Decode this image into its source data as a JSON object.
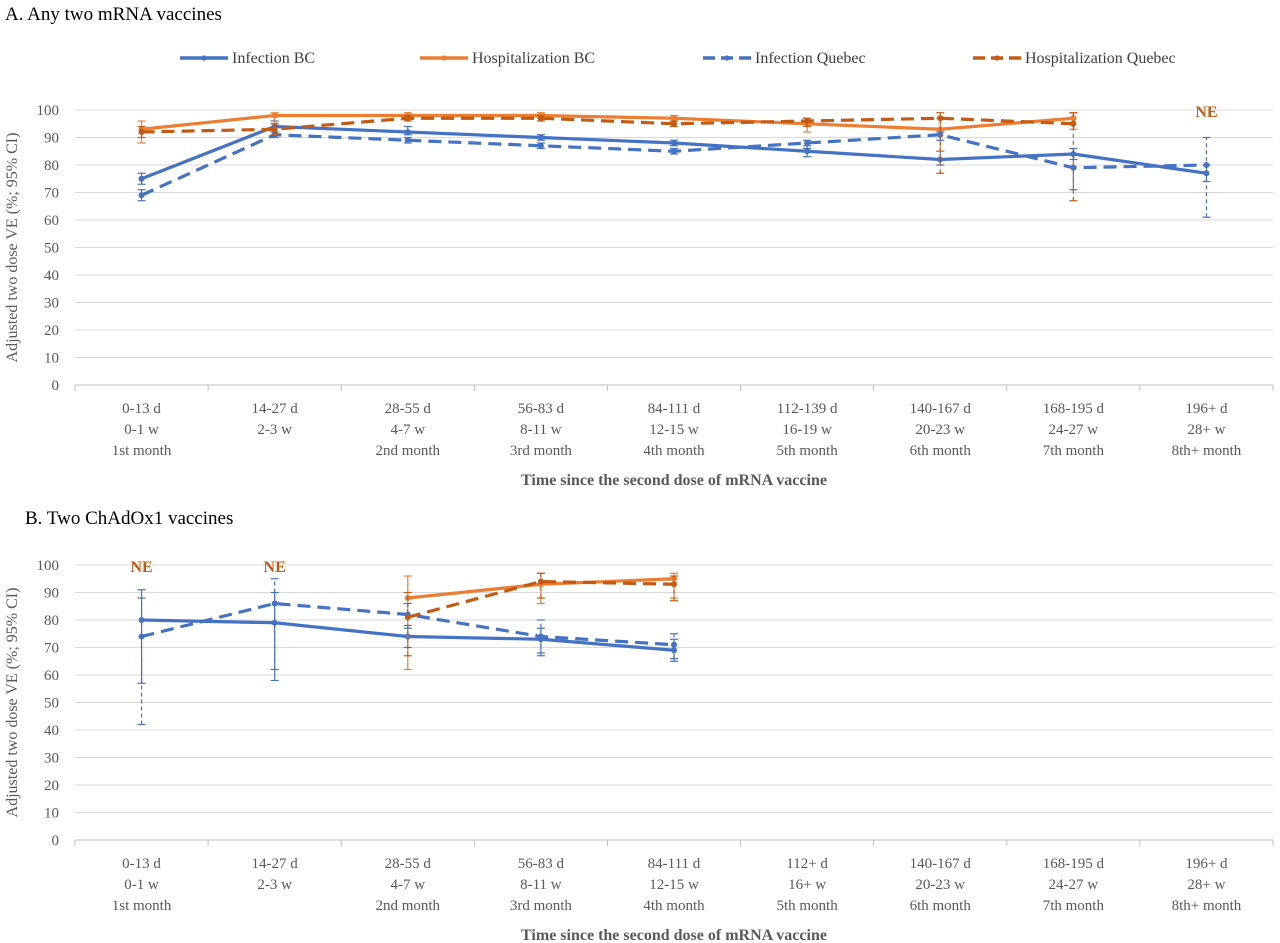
{
  "legend": [
    {
      "name": "Infection BC",
      "color": "#4472C4",
      "dash": false
    },
    {
      "name": "Hospitalization BC",
      "color": "#ED7D31",
      "dash": false
    },
    {
      "name": "Infection Quebec",
      "color": "#4472C4",
      "dash": true
    },
    {
      "name": "Hospitalization Quebec",
      "color": "#C55A11",
      "dash": true
    }
  ],
  "chart_data": [
    {
      "type": "line",
      "title": "A. Any two mRNA vaccines",
      "xlabel": "Time since the second dose of mRNA vaccine",
      "ylabel": "Adjusted two dose VE (%; 95% CI)",
      "ylim": [
        0,
        100
      ],
      "yticks": [
        0,
        10,
        20,
        30,
        40,
        50,
        60,
        70,
        80,
        90,
        100
      ],
      "grid": true,
      "legend_position": "top",
      "categories": [
        [
          "0-13 d",
          "0-1 w",
          "1st month"
        ],
        [
          "14-27 d",
          "2-3 w",
          ""
        ],
        [
          "28-55 d",
          "4-7 w",
          "2nd month"
        ],
        [
          "56-83 d",
          "8-11 w",
          "3rd month"
        ],
        [
          "84-111 d",
          "12-15 w",
          "4th month"
        ],
        [
          "112-139 d",
          "16-19 w",
          "5th month"
        ],
        [
          "140-167 d",
          "20-23 w",
          "6th month"
        ],
        [
          "168-195 d",
          "24-27 w",
          "7th month"
        ],
        [
          "196+ d",
          "28+ w",
          "8th+ month"
        ]
      ],
      "series": [
        {
          "name": "Infection BC",
          "color": "#4472C4",
          "dash": false,
          "values": [
            75,
            94,
            92,
            90,
            88,
            85,
            82,
            84,
            77
          ],
          "ci": [
            [
              73,
              77
            ],
            [
              92,
              96
            ],
            [
              91,
              94
            ],
            [
              89,
              91
            ],
            [
              87,
              89
            ],
            [
              83,
              87
            ],
            [
              80,
              85
            ],
            [
              82,
              86
            ],
            [
              74,
              80
            ]
          ]
        },
        {
          "name": "Hospitalization BC",
          "color": "#ED7D31",
          "dash": false,
          "values": [
            93,
            98,
            98,
            98,
            97,
            95,
            93,
            97,
            null
          ],
          "ci": [
            [
              88,
              96
            ],
            [
              95,
              99
            ],
            [
              97,
              99
            ],
            [
              97,
              99
            ],
            [
              96,
              98
            ],
            [
              92,
              97
            ],
            [
              85,
              97
            ],
            [
              93,
              99
            ],
            null
          ]
        },
        {
          "name": "Infection Quebec",
          "color": "#4472C4",
          "dash": true,
          "values": [
            69,
            91,
            89,
            87,
            85,
            88,
            91,
            79,
            80
          ],
          "ci": [
            [
              67,
              71
            ],
            [
              90,
              92
            ],
            [
              88,
              90
            ],
            [
              86,
              88
            ],
            [
              84,
              86
            ],
            [
              86,
              89
            ],
            [
              89,
              92
            ],
            [
              71,
              86
            ],
            [
              61,
              90
            ]
          ]
        },
        {
          "name": "Hospitalization Quebec",
          "color": "#C55A11",
          "dash": true,
          "values": [
            92,
            93,
            97,
            97,
            95,
            96,
            97,
            95,
            null
          ],
          "ci": [
            [
              90,
              94
            ],
            [
              91,
              95
            ],
            [
              96,
              98
            ],
            [
              96,
              98
            ],
            [
              94,
              96
            ],
            [
              94,
              97
            ],
            [
              77,
              99
            ],
            [
              67,
              99
            ],
            null
          ]
        }
      ],
      "annotations": [
        {
          "text": "NE",
          "category_index": 8,
          "y": 100,
          "color": "#C55A11"
        }
      ]
    },
    {
      "type": "line",
      "title": "B. Two ChAdOx1 vaccines",
      "xlabel": "Time since the second dose of mRNA vaccine",
      "ylabel": "Adjusted two dose VE (%; 95% CI)",
      "ylim": [
        0,
        100
      ],
      "yticks": [
        0,
        10,
        20,
        30,
        40,
        50,
        60,
        70,
        80,
        90,
        100
      ],
      "grid": true,
      "categories": [
        [
          "0-13 d",
          "0-1 w",
          "1st month"
        ],
        [
          "14-27 d",
          "2-3 w",
          ""
        ],
        [
          "28-55 d",
          "4-7 w",
          "2nd month"
        ],
        [
          "56-83 d",
          "8-11 w",
          "3rd month"
        ],
        [
          "84-111 d",
          "12-15 w",
          "4th month"
        ],
        [
          "112+ d",
          "16+ w",
          "5th month"
        ],
        [
          "140-167 d",
          "20-23 w",
          "6th month"
        ],
        [
          "168-195 d",
          "24-27 w",
          "7th month"
        ],
        [
          "196+ d",
          "28+ w",
          "8th+ month"
        ]
      ],
      "series": [
        {
          "name": "Infection BC",
          "color": "#4472C4",
          "dash": false,
          "values": [
            80,
            79,
            74,
            73,
            69,
            null,
            null,
            null,
            null
          ],
          "ci": [
            [
              57,
              91
            ],
            [
              58,
              90
            ],
            [
              70,
              78
            ],
            [
              68,
              77
            ],
            [
              65,
              73
            ],
            null,
            null,
            null,
            null
          ]
        },
        {
          "name": "Hospitalization BC",
          "color": "#ED7D31",
          "dash": false,
          "values": [
            null,
            null,
            88,
            93,
            95,
            null,
            null,
            null,
            null
          ],
          "ci": [
            null,
            null,
            [
              62,
              96
            ],
            [
              86,
              97
            ],
            [
              88,
              97
            ],
            null,
            null,
            null,
            null
          ]
        },
        {
          "name": "Infection Quebec",
          "color": "#4472C4",
          "dash": true,
          "values": [
            74,
            86,
            82,
            74,
            71,
            null,
            null,
            null,
            null
          ],
          "ci": [
            [
              42,
              88
            ],
            [
              62,
              95
            ],
            [
              77,
              86
            ],
            [
              67,
              80
            ],
            [
              66,
              75
            ],
            null,
            null,
            null,
            null
          ]
        },
        {
          "name": "Hospitalization Quebec",
          "color": "#C55A11",
          "dash": true,
          "values": [
            null,
            null,
            81,
            94,
            93,
            null,
            null,
            null,
            null
          ],
          "ci": [
            null,
            null,
            [
              67,
              90
            ],
            [
              88,
              97
            ],
            [
              87,
              96
            ],
            null,
            null,
            null,
            null
          ]
        }
      ],
      "annotations": [
        {
          "text": "NE",
          "category_index": 0,
          "y": 100,
          "color": "#C55A11"
        },
        {
          "text": "NE",
          "category_index": 1,
          "y": 100,
          "color": "#C55A11"
        }
      ]
    }
  ]
}
